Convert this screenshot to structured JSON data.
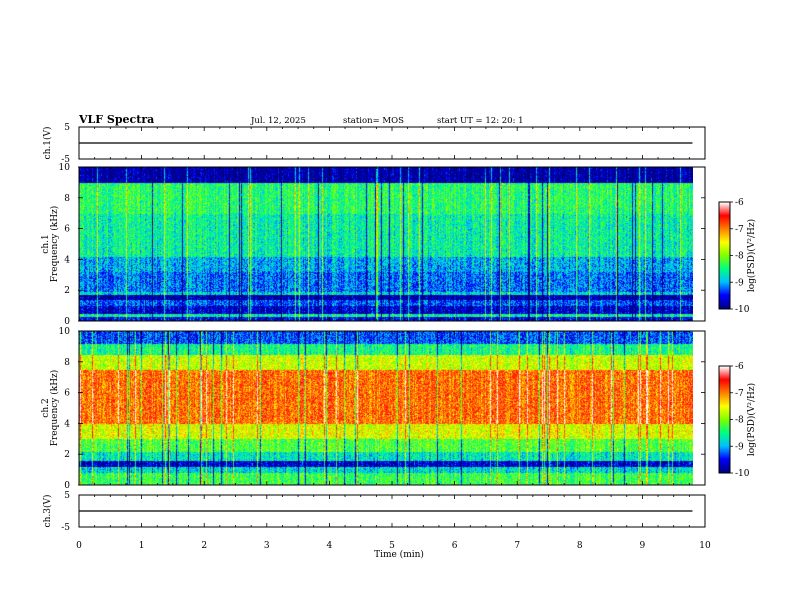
{
  "header": {
    "title": "VLF Spectra",
    "date": "Jul. 12, 2025",
    "station": "station= MOS",
    "start": "start  UT =  12: 20: 1"
  },
  "colors": {
    "colormap": [
      "#000080",
      "#0000ff",
      "#00c0ff",
      "#00ff80",
      "#80ff00",
      "#ffff00",
      "#ff8000",
      "#ff0000",
      "#ffffff"
    ]
  },
  "chart_data": [
    {
      "type": "line",
      "panel": "ch1-waveform",
      "ylabel": "ch.1(V)",
      "ylim": [
        -5,
        5
      ],
      "yticks": [
        "5",
        "-5"
      ],
      "xlim": [
        0,
        10
      ],
      "series": [
        {
          "x": [
            0,
            9.8
          ],
          "y": [
            0,
            0
          ]
        }
      ]
    },
    {
      "type": "heatmap",
      "panel": "ch1-spectrogram",
      "ylabel": "ch.1\nFrequency (kHz)",
      "ylim": [
        0,
        10
      ],
      "yticks": [
        "0",
        "2",
        "4",
        "6",
        "8",
        "10"
      ],
      "xlim": [
        0,
        10
      ],
      "colorbar": {
        "label": "log(PSD)(V²/Hz)",
        "ticks": [
          "-6",
          "-7",
          "-8",
          "-9",
          "-10"
        ],
        "range": [
          -10,
          -6
        ]
      },
      "bands": [
        {
          "f": [
            0,
            0.3
          ],
          "level": -9.6
        },
        {
          "f": [
            0.3,
            0.5
          ],
          "level": -8.6
        },
        {
          "f": [
            0.5,
            1.0
          ],
          "level": -9.7
        },
        {
          "f": [
            1.0,
            1.4
          ],
          "level": -9.3
        },
        {
          "f": [
            1.4,
            1.7
          ],
          "level": -9.9
        },
        {
          "f": [
            1.7,
            1.9
          ],
          "level": -8.8
        },
        {
          "f": [
            1.9,
            3.2
          ],
          "level": -9.2
        },
        {
          "f": [
            3.2,
            4.2
          ],
          "level": -9.0
        },
        {
          "f": [
            4.2,
            7.0
          ],
          "level": -8.6
        },
        {
          "f": [
            7.0,
            9.0
          ],
          "level": -8.4
        },
        {
          "f": [
            9.0,
            10.0
          ],
          "level": -9.9
        }
      ]
    },
    {
      "type": "heatmap",
      "panel": "ch2-spectrogram",
      "ylabel": "ch.2\nFrequency (kHz)",
      "ylim": [
        0,
        10
      ],
      "yticks": [
        "0",
        "2",
        "4",
        "6",
        "8",
        "10"
      ],
      "xlim": [
        0,
        10
      ],
      "colorbar": {
        "label": "log(PSD)(V²/Hz)",
        "ticks": [
          "-6",
          "-7",
          "-8",
          "-9",
          "-10"
        ],
        "range": [
          -10,
          -6
        ]
      },
      "bands": [
        {
          "f": [
            0,
            0.8
          ],
          "level": -8.3
        },
        {
          "f": [
            0.8,
            1.2
          ],
          "level": -8.8
        },
        {
          "f": [
            1.2,
            1.6
          ],
          "level": -9.7
        },
        {
          "f": [
            1.6,
            2.2
          ],
          "level": -8.7
        },
        {
          "f": [
            2.2,
            3.0
          ],
          "level": -8.2
        },
        {
          "f": [
            3.0,
            4.0
          ],
          "level": -7.6
        },
        {
          "f": [
            4.0,
            7.5
          ],
          "level": -6.9
        },
        {
          "f": [
            7.5,
            8.5
          ],
          "level": -7.7
        },
        {
          "f": [
            8.5,
            9.2
          ],
          "level": -8.5
        },
        {
          "f": [
            9.2,
            10.0
          ],
          "level": -9.3
        }
      ]
    },
    {
      "type": "line",
      "panel": "ch3-waveform",
      "ylabel": "ch.3(V)",
      "ylim": [
        -5,
        5
      ],
      "yticks": [
        "5",
        "-5"
      ],
      "xlim": [
        0,
        10
      ],
      "series": [
        {
          "x": [
            0,
            9.8
          ],
          "y": [
            0,
            0
          ]
        }
      ]
    }
  ],
  "xaxis": {
    "label": "Time (min)",
    "ticks": [
      "0",
      "1",
      "2",
      "3",
      "4",
      "5",
      "6",
      "7",
      "8",
      "9",
      "10"
    ],
    "xlim": [
      0,
      10
    ]
  }
}
